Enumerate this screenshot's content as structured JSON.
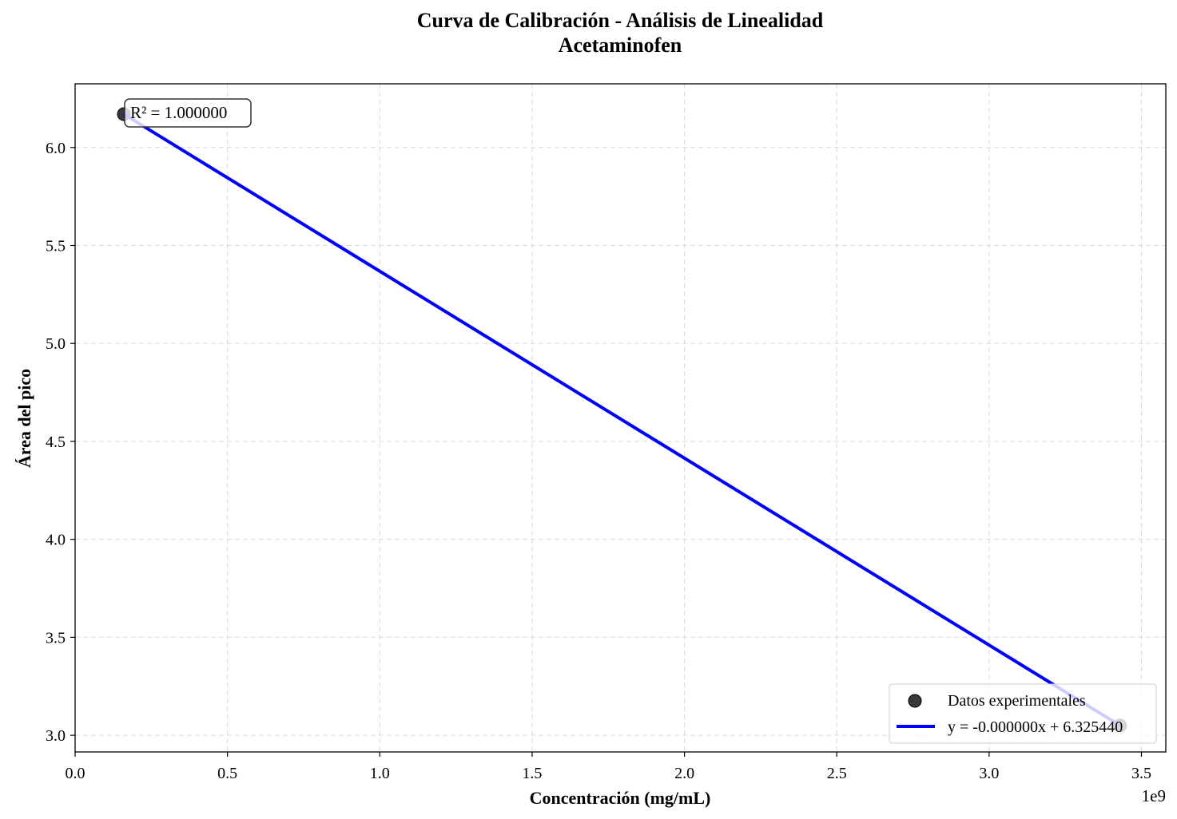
{
  "chart_data": {
    "type": "scatter",
    "title": "Curva de Calibración - Análisis de Linealidad",
    "subtitle": "Acetaminofen",
    "xlabel": "Concentración (mg/mL)",
    "ylabel": "Área del pico",
    "x_offset_label": "1e9",
    "xlim": [
      0,
      3.58
    ],
    "ylim": [
      2.915,
      6.325
    ],
    "x_ticks": [
      {
        "value": 0.0,
        "label": "0.0"
      },
      {
        "value": 0.5,
        "label": "0.5"
      },
      {
        "value": 1.0,
        "label": "1.0"
      },
      {
        "value": 1.5,
        "label": "1.5"
      },
      {
        "value": 2.0,
        "label": "2.0"
      },
      {
        "value": 2.5,
        "label": "2.5"
      },
      {
        "value": 3.0,
        "label": "3.0"
      },
      {
        "value": 3.5,
        "label": "3.5"
      }
    ],
    "y_ticks": [
      {
        "value": 3.0,
        "label": "3.0"
      },
      {
        "value": 3.5,
        "label": "3.5"
      },
      {
        "value": 4.0,
        "label": "4.0"
      },
      {
        "value": 4.5,
        "label": "4.5"
      },
      {
        "value": 5.0,
        "label": "5.0"
      },
      {
        "value": 5.5,
        "label": "5.5"
      },
      {
        "value": 6.0,
        "label": "6.0"
      }
    ],
    "grid": true,
    "legend_position": "lower-right",
    "series": [
      {
        "name": "Datos experimentales",
        "kind": "scatter",
        "color": "#222222",
        "points": [
          {
            "x": 0.16,
            "y": 6.17
          },
          {
            "x": 3.43,
            "y": 3.05
          }
        ]
      },
      {
        "name": "y = -0.000000x + 6.325440",
        "kind": "line",
        "color": "#0000ff",
        "points": [
          {
            "x": 0.16,
            "y": 6.17
          },
          {
            "x": 3.43,
            "y": 3.05
          }
        ]
      }
    ],
    "annotation": "R² = 1.000000"
  }
}
